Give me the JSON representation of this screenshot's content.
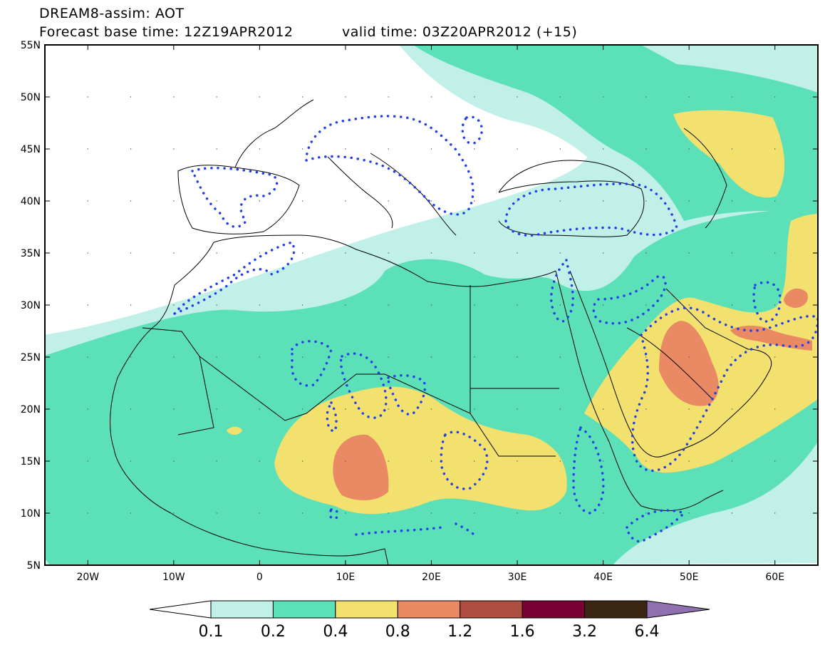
{
  "title": {
    "line1": "DREAM8-assim: AOT",
    "base_time": "Forecast base time: 12Z19APR2012",
    "valid_time": "valid time: 03Z20APR2012 (+15)"
  },
  "map": {
    "lon_range": [
      -25,
      65
    ],
    "lat_range": [
      5,
      55
    ],
    "lat_ticks": [
      {
        "value": 55,
        "label": "55N"
      },
      {
        "value": 50,
        "label": "50N"
      },
      {
        "value": 45,
        "label": "45N"
      },
      {
        "value": 40,
        "label": "40N"
      },
      {
        "value": 35,
        "label": "35N"
      },
      {
        "value": 30,
        "label": "30N"
      },
      {
        "value": 25,
        "label": "25N"
      },
      {
        "value": 20,
        "label": "20N"
      },
      {
        "value": 15,
        "label": "15N"
      },
      {
        "value": 10,
        "label": "10N"
      },
      {
        "value": 5,
        "label": "5N"
      }
    ],
    "lon_ticks": [
      {
        "value": -20,
        "label": "20W"
      },
      {
        "value": -10,
        "label": "10W"
      },
      {
        "value": 0,
        "label": "0"
      },
      {
        "value": 10,
        "label": "10E"
      },
      {
        "value": 20,
        "label": "20E"
      },
      {
        "value": 30,
        "label": "30E"
      },
      {
        "value": 40,
        "label": "40E"
      },
      {
        "value": 50,
        "label": "50E"
      },
      {
        "value": 60,
        "label": "60E"
      }
    ]
  },
  "colorbar": {
    "levels": [
      "0.1",
      "0.2",
      "0.4",
      "0.8",
      "1.2",
      "1.6",
      "3.2",
      "6.4"
    ],
    "colors": [
      "#ffffff",
      "#c0f0e8",
      "#5ce0b8",
      "#f2e16e",
      "#ea8a64",
      "#ad4e40",
      "#7a0033",
      "#3b2614",
      "#9070b0"
    ]
  },
  "colors": {
    "band_0_1": "#c0f0e8",
    "band_0_2": "#5ce0b8",
    "band_0_4": "#f2e16e",
    "band_0_8": "#ea8a64",
    "band_1_2": "#ad4e40",
    "contour_dots": "#2240e8"
  }
}
